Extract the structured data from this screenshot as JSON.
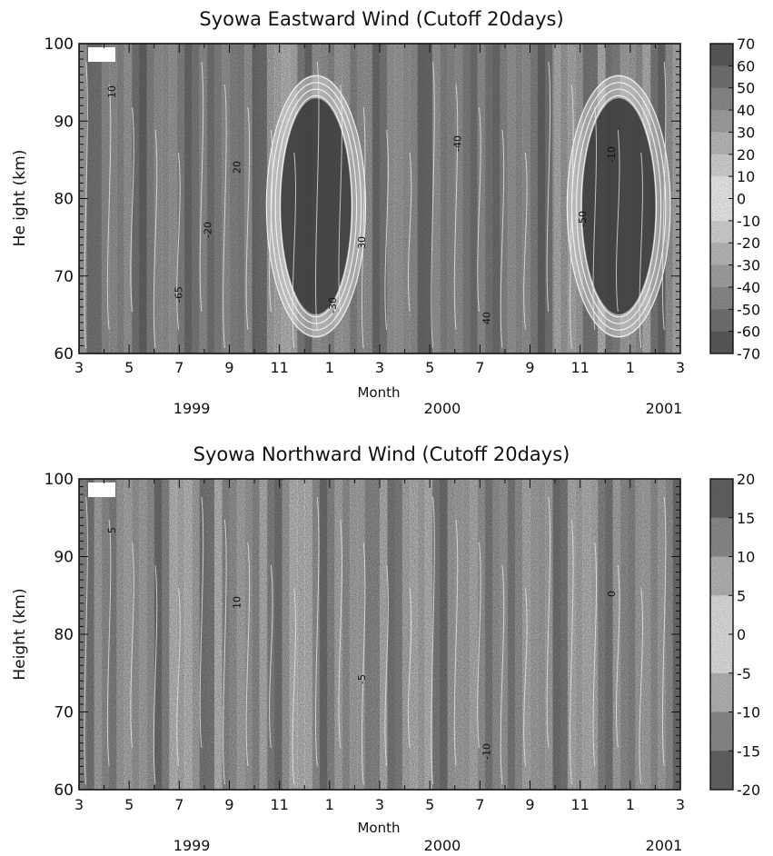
{
  "chart_data": [
    {
      "type": "heatmap",
      "title": "Syowa Eastward Wind (Cutoff 20days)",
      "xlabel": "Month",
      "ylabel": "He ight (km)",
      "x_ticks": [
        "3",
        "5",
        "7",
        "9",
        "11",
        "1",
        "3",
        "5",
        "7",
        "9",
        "11",
        "1",
        "3"
      ],
      "year_labels": [
        "1999",
        "2000",
        "2001"
      ],
      "xlim": [
        "1999-03",
        "2001-03"
      ],
      "ylim": [
        60,
        100
      ],
      "y_ticks": [
        60,
        70,
        80,
        90,
        100
      ],
      "colorbar": {
        "ticks": [
          70,
          60,
          50,
          40,
          30,
          20,
          10,
          0,
          -10,
          -20,
          -30,
          -40,
          -50,
          -60,
          -70
        ],
        "range": [
          -70,
          70
        ]
      },
      "contour_labels": [
        "10",
        "20",
        "30",
        "40",
        "-10",
        "-20",
        "-30",
        "-40",
        "-50",
        "-65"
      ],
      "features": [
        {
          "kind": "westward_core",
          "from": "1999-10-15",
          "to": "2000-02-15",
          "height_range": [
            62,
            96
          ],
          "peak_value": -60
        },
        {
          "kind": "westward_core",
          "from": "2000-10-15",
          "to": "2001-02-20",
          "height_range": [
            62,
            96
          ],
          "peak_value": -60
        },
        {
          "kind": "eastward_region",
          "from": "1999-03-01",
          "to": "1999-10-01",
          "height_range": [
            60,
            100
          ],
          "peak_value": 40
        },
        {
          "kind": "eastward_region",
          "from": "2000-03-01",
          "to": "2000-09-30",
          "height_range": [
            60,
            100
          ],
          "peak_value": 40
        }
      ],
      "grid": false
    },
    {
      "type": "heatmap",
      "title": "Syowa Northward Wind (Cutoff 20days)",
      "xlabel": "Month",
      "ylabel": "Height (km)",
      "x_ticks": [
        "3",
        "5",
        "7",
        "9",
        "11",
        "1",
        "3",
        "5",
        "7",
        "9",
        "11",
        "1",
        "3"
      ],
      "year_labels": [
        "1999",
        "2000",
        "2001"
      ],
      "xlim": [
        "1999-03",
        "2001-03"
      ],
      "ylim": [
        60,
        100
      ],
      "y_ticks": [
        60,
        70,
        80,
        90,
        100
      ],
      "colorbar": {
        "ticks": [
          20,
          15,
          10,
          5,
          0,
          -5,
          -10,
          -15,
          -20
        ],
        "range": [
          -20,
          20
        ]
      },
      "contour_labels": [
        "5",
        "10",
        "-5",
        "-10",
        "0"
      ],
      "grid": false
    }
  ]
}
